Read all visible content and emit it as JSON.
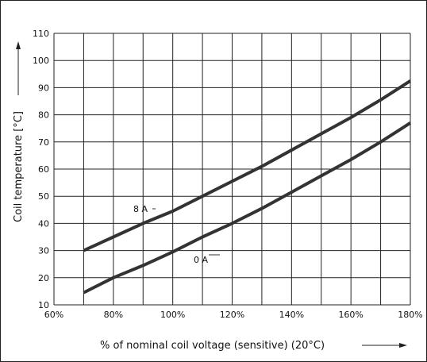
{
  "chart_data": {
    "type": "line",
    "title": "",
    "xlabel": "% of nominal coil voltage (sensitive) (20°C)",
    "ylabel": "Coil temperature [°C]",
    "xlim": [
      60,
      180
    ],
    "ylim": [
      10,
      110
    ],
    "x_ticks": [
      60,
      70,
      80,
      90,
      100,
      110,
      120,
      130,
      140,
      150,
      160,
      170,
      180
    ],
    "x_tick_labels": [
      "60%",
      "",
      "80%",
      "",
      "100%",
      "",
      "120%",
      "",
      "140%",
      "",
      "160%",
      "",
      "180%"
    ],
    "y_ticks": [
      10,
      20,
      30,
      40,
      50,
      60,
      70,
      80,
      90,
      100,
      110
    ],
    "y_tick_labels": [
      "10",
      "20",
      "30",
      "40",
      "50",
      "60",
      "70",
      "80",
      "90",
      "100",
      "110"
    ],
    "grid": true,
    "series": [
      {
        "name": "8 A",
        "x": [
          70,
          80,
          90,
          100,
          110,
          120,
          130,
          140,
          150,
          160,
          170,
          180
        ],
        "y": [
          30,
          35,
          40,
          44.5,
          50,
          55.5,
          61,
          67,
          73,
          79,
          85.5,
          92.5
        ]
      },
      {
        "name": "0 A",
        "x": [
          70,
          80,
          90,
          100,
          110,
          120,
          130,
          140,
          150,
          160,
          170,
          180
        ],
        "y": [
          14.5,
          20,
          24.5,
          29.5,
          35,
          40,
          45.5,
          51.5,
          57.5,
          63.5,
          70,
          77
        ]
      }
    ],
    "line_color": "#333333"
  }
}
